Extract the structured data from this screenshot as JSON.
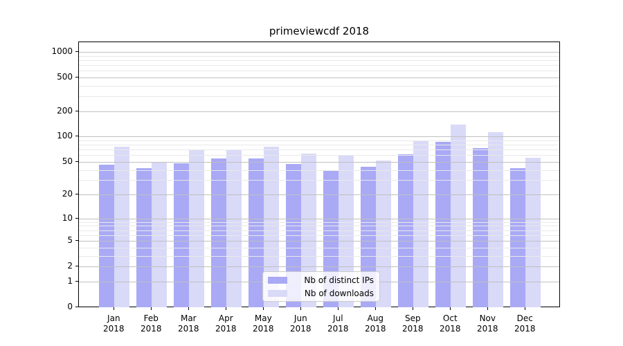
{
  "title": "primeviewcdf 2018",
  "legend": {
    "items": [
      {
        "label": "Nb of distinct IPs",
        "color": "#a9a9f5"
      },
      {
        "label": "Nb of downloads",
        "color": "#d9d9f8"
      }
    ]
  },
  "axes": {
    "y_tick_values": [
      0,
      1,
      2,
      5,
      10,
      20,
      50,
      100,
      200,
      500,
      1000
    ],
    "y_minor_values": [
      3,
      4,
      6,
      7,
      8,
      9,
      30,
      40,
      60,
      70,
      80,
      90,
      300,
      400,
      600,
      700,
      800,
      900
    ],
    "x_months": [
      "Jan",
      "Feb",
      "Mar",
      "Apr",
      "May",
      "Jun",
      "Jul",
      "Aug",
      "Sep",
      "Oct",
      "Nov",
      "Dec"
    ],
    "x_year": "2018"
  },
  "chart_data": {
    "type": "bar",
    "title": "primeviewcdf 2018",
    "categories": [
      "Jan 2018",
      "Feb 2018",
      "Mar 2018",
      "Apr 2018",
      "May 2018",
      "Jun 2018",
      "Jul 2018",
      "Aug 2018",
      "Sep 2018",
      "Oct 2018",
      "Nov 2018",
      "Dec 2018"
    ],
    "series": [
      {
        "name": "Nb of distinct IPs",
        "color": "#a9a9f5",
        "values": [
          46,
          42,
          48,
          55,
          55,
          47,
          39,
          44,
          62,
          87,
          73,
          42
        ]
      },
      {
        "name": "Nb of downloads",
        "color": "#d9d9f8",
        "values": [
          76,
          50,
          69,
          70,
          76,
          63,
          60,
          52,
          89,
          138,
          114,
          56
        ]
      }
    ],
    "xlabel": "",
    "ylabel": "",
    "yscale": "log1p",
    "ylim": [
      0,
      1300
    ],
    "y_ticks": [
      0,
      1,
      2,
      5,
      10,
      20,
      50,
      100,
      200,
      500,
      1000
    ],
    "grid": "horizontal major+minor, drawn over bars",
    "legend_position": "inside lower-center"
  }
}
